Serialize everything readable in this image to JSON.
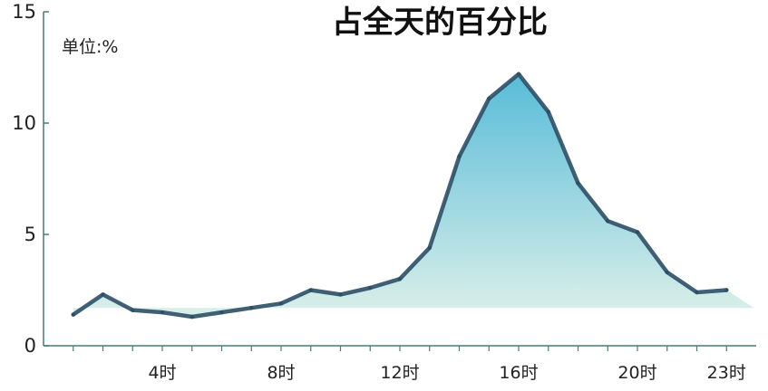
{
  "chart_data": {
    "type": "area",
    "title": "占全天的百分比",
    "unit_label": "单位:%",
    "xlabel": "",
    "ylabel": "",
    "x": [
      1,
      2,
      3,
      4,
      5,
      6,
      7,
      8,
      9,
      10,
      11,
      12,
      13,
      14,
      15,
      16,
      17,
      18,
      19,
      20,
      21,
      22,
      23
    ],
    "values": [
      1.4,
      2.3,
      1.6,
      1.5,
      1.3,
      1.5,
      1.7,
      1.9,
      2.5,
      2.3,
      2.6,
      3.0,
      4.4,
      8.5,
      11.1,
      12.2,
      10.5,
      7.3,
      5.6,
      5.1,
      3.3,
      2.4,
      2.5
    ],
    "ylim": [
      0,
      15
    ],
    "yticks": [
      0,
      5,
      10,
      15
    ],
    "xlim": [
      0,
      24
    ],
    "xtick_values": [
      4,
      8,
      12,
      16,
      20,
      23
    ],
    "xtick_labels": [
      "4时",
      "8时",
      "12时",
      "16时",
      "20时",
      "23时"
    ],
    "grid": false,
    "colors": {
      "line": "#2d4f66",
      "fill_top": "#4fb8d6",
      "fill_bottom": "#d9efe8",
      "axis": "#4a7a72"
    }
  }
}
